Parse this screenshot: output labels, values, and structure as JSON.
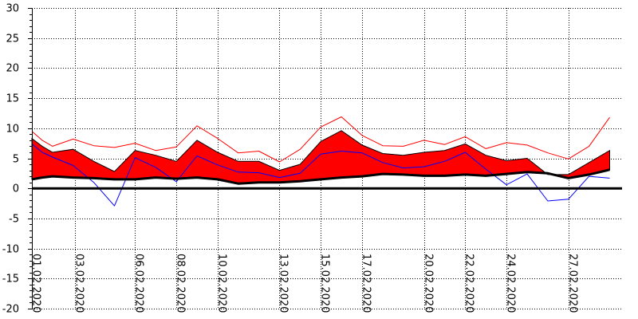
{
  "chart_data": {
    "type": "area",
    "title": "",
    "xlabel": "",
    "ylabel": "",
    "ylim": [
      -20,
      30
    ],
    "yticks": [
      30,
      25,
      20,
      15,
      10,
      5,
      0,
      -5,
      -10,
      -15,
      -20
    ],
    "grid": true,
    "legend": "none",
    "x_tick_labels": [
      "01.02.2020",
      "03.02.2020",
      "06.02.2020",
      "08.02.2020",
      "10.02.2020",
      "13.02.2020",
      "15.02.2020",
      "17.02.2020",
      "20.02.2020",
      "22.02.2020",
      "24.02.2020",
      "27.02.2020"
    ],
    "x_tick_days": [
      1,
      3.1,
      6,
      8,
      10,
      13,
      15,
      17,
      20,
      22,
      24,
      27
    ],
    "x_days": [
      1,
      1.5,
      2,
      3,
      4,
      5,
      6,
      7,
      8,
      9,
      10,
      11,
      12,
      13,
      14,
      15,
      16,
      17,
      18,
      19,
      20,
      21,
      22,
      23,
      24,
      25,
      26,
      27,
      28,
      29
    ],
    "series": [
      {
        "role": "band-upper",
        "color": "#ff0000",
        "values": [
          8.3,
          7.0,
          6.0,
          6.5,
          4.5,
          2.8,
          6.3,
          5.5,
          4.5,
          8.0,
          6.0,
          4.5,
          4.5,
          3.0,
          4.0,
          7.8,
          9.6,
          7.2,
          5.8,
          5.5,
          6.0,
          6.3,
          7.4,
          5.5,
          4.6,
          5.0,
          2.3,
          2.3,
          4.3,
          6.3
        ]
      },
      {
        "role": "band-lower",
        "color": "#000000",
        "values": [
          1.5,
          1.8,
          2.0,
          1.8,
          1.7,
          1.5,
          1.5,
          1.8,
          1.6,
          1.8,
          1.5,
          0.8,
          1.0,
          1.0,
          1.2,
          1.5,
          1.8,
          2.0,
          2.4,
          2.3,
          2.1,
          2.1,
          2.3,
          2.1,
          2.4,
          2.7,
          2.5,
          1.7,
          2.3,
          3.1
        ]
      },
      {
        "role": "upper-line",
        "color": "#ff0000",
        "values": [
          9.5,
          8.0,
          7.0,
          8.2,
          7.1,
          6.8,
          7.5,
          6.3,
          6.9,
          10.4,
          8.3,
          5.9,
          6.2,
          4.4,
          6.5,
          10.2,
          11.9,
          8.8,
          7.1,
          7.0,
          8.0,
          7.3,
          8.6,
          6.6,
          7.6,
          7.2,
          5.9,
          4.9,
          7.0,
          11.8
        ]
      },
      {
        "role": "lower-line",
        "color": "#0000ff",
        "values": [
          7.4,
          6.0,
          5.2,
          3.8,
          1.0,
          -2.9,
          5.1,
          3.5,
          1.1,
          5.4,
          3.9,
          2.7,
          2.6,
          1.8,
          2.5,
          5.7,
          6.2,
          5.9,
          4.3,
          3.4,
          3.6,
          4.5,
          6.0,
          3.2,
          0.6,
          2.4,
          -2.1,
          -1.8,
          2.0,
          1.7
        ]
      }
    ]
  }
}
